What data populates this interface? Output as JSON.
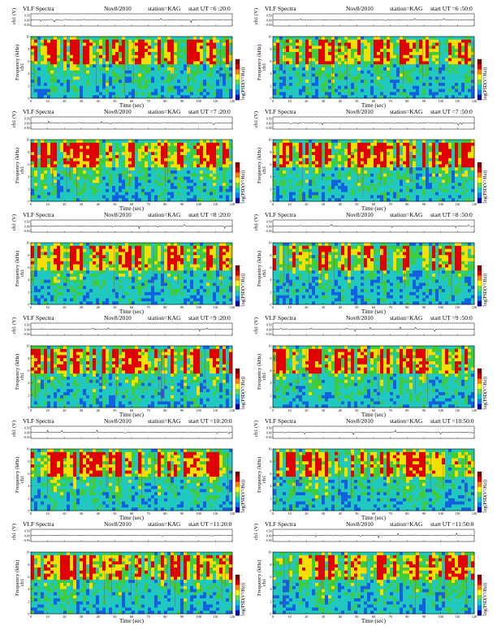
{
  "figure": {
    "header_title": "VLF Spectra",
    "header_date": "Nov8/2010",
    "header_station": "station=KAG",
    "header_start_prefix": "start UT =",
    "ch_label": "ch1 (V)",
    "ch_ticks": [
      "0.50",
      "0.00",
      "-0.50"
    ],
    "freq_label_line1": "ch1",
    "freq_label_line2": "Frequency (kHz)",
    "freq_ticks": [
      "0",
      "2",
      "4",
      "6",
      "8",
      "10"
    ],
    "time_label": "Time (sec)",
    "time_ticks": [
      "0",
      "10",
      "20",
      "30",
      "40",
      "50",
      "60",
      "70",
      "80",
      "90",
      "100",
      "110",
      "120"
    ],
    "colorbar_label": "log(PSD(V²/Hz))",
    "colorbar_ticks": [
      "-",
      "-",
      "-",
      "-"
    ]
  },
  "chart_data": [
    {
      "type": "heatmap",
      "start_time": "6 :20:0",
      "station": "KAG",
      "date": "Nov8/2010",
      "x": {
        "label": "Time (sec)",
        "range": [
          0,
          120
        ]
      },
      "y": {
        "label": "Frequency (kHz)",
        "range": [
          0,
          10
        ]
      },
      "top_series": {
        "label": "ch1 (V)",
        "range": [
          -0.5,
          0.5
        ]
      },
      "colorbar": "log(PSD(V²/Hz))"
    },
    {
      "type": "heatmap",
      "start_time": "6 :50:0",
      "station": "KAG",
      "date": "Nov8/2010",
      "x": {
        "label": "Time (sec)",
        "range": [
          0,
          120
        ]
      },
      "y": {
        "label": "Frequency (kHz)",
        "range": [
          0,
          10
        ]
      },
      "top_series": {
        "label": "ch1 (V)",
        "range": [
          -0.5,
          0.5
        ]
      },
      "colorbar": "log(PSD(V²/Hz))"
    },
    {
      "type": "heatmap",
      "start_time": "7 :20:0",
      "station": "KAG",
      "date": "Nov8/2010",
      "x": {
        "label": "Time (sec)",
        "range": [
          0,
          120
        ]
      },
      "y": {
        "label": "Frequency (kHz)",
        "range": [
          0,
          10
        ]
      },
      "top_series": {
        "label": "ch1 (V)",
        "range": [
          -0.5,
          0.5
        ]
      },
      "colorbar": "log(PSD(V²/Hz))"
    },
    {
      "type": "heatmap",
      "start_time": "7 :50:0",
      "station": "KAG",
      "date": "Nov8/2010",
      "x": {
        "label": "Time (sec)",
        "range": [
          0,
          120
        ]
      },
      "y": {
        "label": "Frequency (kHz)",
        "range": [
          0,
          10
        ]
      },
      "top_series": {
        "label": "ch1 (V)",
        "range": [
          -0.5,
          0.5
        ]
      },
      "colorbar": "log(PSD(V²/Hz))"
    },
    {
      "type": "heatmap",
      "start_time": "8 :20:0",
      "station": "KAG",
      "date": "Nov8/2010",
      "x": {
        "label": "Time (sec)",
        "range": [
          0,
          120
        ]
      },
      "y": {
        "label": "Frequency (kHz)",
        "range": [
          0,
          10
        ]
      },
      "top_series": {
        "label": "ch1 (V)",
        "range": [
          -0.5,
          0.5
        ]
      },
      "colorbar": "log(PSD(V²/Hz))"
    },
    {
      "type": "heatmap",
      "start_time": "8 :50:0",
      "station": "KAG",
      "date": "Nov8/2010",
      "x": {
        "label": "Time (sec)",
        "range": [
          0,
          120
        ]
      },
      "y": {
        "label": "Frequency (kHz)",
        "range": [
          0,
          10
        ]
      },
      "top_series": {
        "label": "ch1 (V)",
        "range": [
          -0.5,
          0.5
        ]
      },
      "colorbar": "log(PSD(V²/Hz))"
    },
    {
      "type": "heatmap",
      "start_time": "9 :20:0",
      "station": "KAG",
      "date": "Nov8/2010",
      "x": {
        "label": "Time (sec)",
        "range": [
          0,
          120
        ]
      },
      "y": {
        "label": "Frequency (kHz)",
        "range": [
          0,
          10
        ]
      },
      "top_series": {
        "label": "ch1 (V)",
        "range": [
          -0.5,
          0.5
        ]
      },
      "colorbar": "log(PSD(V²/Hz))"
    },
    {
      "type": "heatmap",
      "start_time": "9 :50:0",
      "station": "KAG",
      "date": "Nov8/2010",
      "x": {
        "label": "Time (sec)",
        "range": [
          0,
          120
        ]
      },
      "y": {
        "label": "Frequency (kHz)",
        "range": [
          0,
          10
        ]
      },
      "top_series": {
        "label": "ch1 (V)",
        "range": [
          -0.5,
          0.5
        ]
      },
      "colorbar": "log(PSD(V²/Hz))"
    },
    {
      "type": "heatmap",
      "start_time": "10:20:0",
      "station": "KAG",
      "date": "Nov8/2010",
      "x": {
        "label": "Time (sec)",
        "range": [
          0,
          120
        ]
      },
      "y": {
        "label": "Frequency (kHz)",
        "range": [
          0,
          10
        ]
      },
      "top_series": {
        "label": "ch1 (V)",
        "range": [
          -0.5,
          0.5
        ]
      },
      "colorbar": "log(PSD(V²/Hz))"
    },
    {
      "type": "heatmap",
      "start_time": "10:50:0",
      "station": "KAG",
      "date": "Nov8/2010",
      "x": {
        "label": "Time (sec)",
        "range": [
          0,
          120
        ]
      },
      "y": {
        "label": "Frequency (kHz)",
        "range": [
          0,
          10
        ]
      },
      "top_series": {
        "label": "ch1 (V)",
        "range": [
          -0.5,
          0.5
        ]
      },
      "colorbar": "log(PSD(V²/Hz))"
    },
    {
      "type": "heatmap",
      "start_time": "11:20:0",
      "station": "KAG",
      "date": "Nov8/2010",
      "x": {
        "label": "Time (sec)",
        "range": [
          0,
          120
        ]
      },
      "y": {
        "label": "Frequency (kHz)",
        "range": [
          0,
          10
        ]
      },
      "top_series": {
        "label": "ch1 (V)",
        "range": [
          -0.5,
          0.5
        ]
      },
      "colorbar": "log(PSD(V²/Hz))"
    },
    {
      "type": "heatmap",
      "start_time": "11:50:0",
      "station": "KAG",
      "date": "Nov8/2010",
      "x": {
        "label": "Time (sec)",
        "range": [
          0,
          120
        ]
      },
      "y": {
        "label": "Frequency (kHz)",
        "range": [
          0,
          10
        ]
      },
      "top_series": {
        "label": "ch1 (V)",
        "range": [
          -0.5,
          0.5
        ]
      },
      "colorbar": "log(PSD(V²/Hz))"
    }
  ],
  "colors": {
    "hot": "#e00000",
    "warm": "#f4e000",
    "mid": "#3ecc3c",
    "cool": "#20c8c0",
    "cold": "#1060e0",
    "background": "#30d4c8",
    "colorbar": [
      "#800000",
      "#e00000",
      "#ff8000",
      "#ffff00",
      "#60e040",
      "#00d0d0",
      "#0080ff",
      "#0000b0"
    ]
  }
}
